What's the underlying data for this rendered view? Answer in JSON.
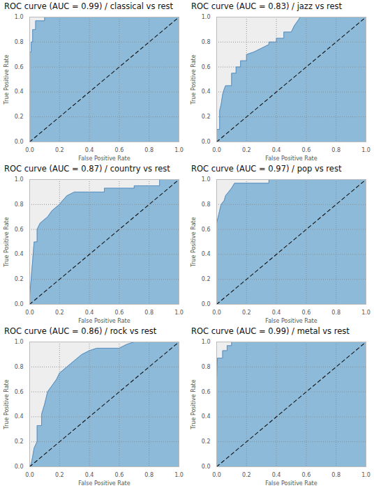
{
  "chart_data": [
    {
      "type": "area",
      "title": "ROC curve (AUC = 0.99) / classical vs rest",
      "x_label": "False Positive Rate",
      "y_label": "True Positive Rate",
      "color": "#8ebad9",
      "x": [
        0,
        0,
        0.01,
        0.01,
        0.02,
        0.02,
        0.04,
        0.04,
        0.1,
        0.1,
        1
      ],
      "values": [
        0,
        0.72,
        0.72,
        0.8,
        0.8,
        0.9,
        0.9,
        0.97,
        0.97,
        1,
        1
      ],
      "xlim": [
        0,
        1
      ],
      "ylim": [
        0,
        1
      ],
      "xticks": [
        {
          "value": 0,
          "label": "0.0"
        },
        0.2,
        0.4,
        0.6,
        0.8,
        {
          "value": 1,
          "label": "1.0"
        }
      ],
      "yticks": [
        {
          "value": 0,
          "label": "0.0"
        },
        0.2,
        0.4,
        0.6,
        0.8,
        {
          "value": 1,
          "label": "1.0"
        }
      ],
      "grid": true
    },
    {
      "type": "area",
      "title": "ROC curve (AUC = 0.83) / jazz vs rest",
      "x_label": "False Positive Rate",
      "y_label": "True Positive Rate",
      "color": "#8ebad9",
      "x": [
        0,
        0,
        0.02,
        0.02,
        0.03,
        0.04,
        0.05,
        0.06,
        0.1,
        0.1,
        0.13,
        0.13,
        0.16,
        0.16,
        0.2,
        0.2,
        0.25,
        0.3,
        0.35,
        0.35,
        0.4,
        0.4,
        0.45,
        0.45,
        0.5,
        0.52,
        0.55,
        0.56,
        1
      ],
      "values": [
        0,
        0.1,
        0.1,
        0.25,
        0.3,
        0.38,
        0.42,
        0.45,
        0.45,
        0.55,
        0.55,
        0.6,
        0.6,
        0.65,
        0.65,
        0.7,
        0.72,
        0.75,
        0.78,
        0.8,
        0.8,
        0.83,
        0.83,
        0.88,
        0.88,
        0.93,
        0.98,
        1,
        1
      ],
      "xlim": [
        0,
        1
      ],
      "ylim": [
        0,
        1
      ],
      "xticks": [
        {
          "value": 0,
          "label": "0.0"
        },
        0.2,
        0.4,
        0.6,
        0.8,
        {
          "value": 1,
          "label": "1.0"
        }
      ],
      "yticks": [
        {
          "value": 0,
          "label": "0.0"
        },
        0.2,
        0.4,
        0.6,
        0.8,
        {
          "value": 1,
          "label": "1.0"
        }
      ],
      "grid": true
    },
    {
      "type": "area",
      "title": "ROC curve (AUC = 0.87) / country vs rest",
      "x_label": "False Positive Rate",
      "y_label": "True Positive Rate",
      "color": "#8ebad9",
      "x": [
        0,
        0,
        0.01,
        0.02,
        0.03,
        0.05,
        0.05,
        0.07,
        0.1,
        0.12,
        0.15,
        0.2,
        0.22,
        0.25,
        0.3,
        0.5,
        0.5,
        0.7,
        0.7,
        0.87,
        0.87,
        1
      ],
      "values": [
        0,
        0.07,
        0.2,
        0.35,
        0.5,
        0.5,
        0.6,
        0.65,
        0.68,
        0.7,
        0.75,
        0.8,
        0.83,
        0.87,
        0.9,
        0.9,
        0.93,
        0.93,
        0.95,
        0.95,
        1,
        1
      ],
      "xlim": [
        0,
        1
      ],
      "ylim": [
        0,
        1
      ],
      "xticks": [
        {
          "value": 0,
          "label": "0.0"
        },
        0.2,
        0.4,
        0.6,
        0.8,
        {
          "value": 1,
          "label": "1.0"
        }
      ],
      "yticks": [
        {
          "value": 0,
          "label": "0.0"
        },
        0.2,
        0.4,
        0.6,
        0.8,
        {
          "value": 1,
          "label": "1.0"
        }
      ],
      "grid": true
    },
    {
      "type": "area",
      "title": "ROC curve (AUC = 0.97) / pop vs rest",
      "x_label": "False Positive Rate",
      "y_label": "True Positive Rate",
      "color": "#8ebad9",
      "x": [
        0,
        0,
        0.01,
        0.02,
        0.03,
        0.05,
        0.06,
        0.08,
        0.1,
        0.12,
        0.35,
        0.35,
        1
      ],
      "values": [
        0,
        0.65,
        0.7,
        0.75,
        0.8,
        0.83,
        0.87,
        0.9,
        0.93,
        0.97,
        0.97,
        1,
        1
      ],
      "xlim": [
        0,
        1
      ],
      "ylim": [
        0,
        1
      ],
      "xticks": [
        {
          "value": 0,
          "label": "0.0"
        },
        0.2,
        0.4,
        0.6,
        0.8,
        {
          "value": 1,
          "label": "1.0"
        }
      ],
      "yticks": [
        {
          "value": 0,
          "label": "0.0"
        },
        0.2,
        0.4,
        0.6,
        0.8,
        {
          "value": 1,
          "label": "1.0"
        }
      ],
      "grid": true
    },
    {
      "type": "area",
      "title": "ROC curve (AUC = 0.86) / rock vs rest",
      "x_label": "False Positive Rate",
      "y_label": "True Positive Rate",
      "color": "#8ebad9",
      "x": [
        0,
        0.01,
        0.02,
        0.03,
        0.05,
        0.05,
        0.08,
        0.08,
        0.1,
        0.12,
        0.15,
        0.18,
        0.2,
        0.25,
        0.3,
        0.35,
        0.4,
        0.45,
        0.6,
        0.65,
        0.7,
        1
      ],
      "values": [
        0,
        0.02,
        0.08,
        0.15,
        0.2,
        0.33,
        0.33,
        0.42,
        0.5,
        0.6,
        0.65,
        0.7,
        0.75,
        0.8,
        0.85,
        0.9,
        0.93,
        0.95,
        0.95,
        0.98,
        1,
        1
      ],
      "xlim": [
        0,
        1
      ],
      "ylim": [
        0,
        1
      ],
      "xticks": [
        {
          "value": 0,
          "label": "0.0"
        },
        0.2,
        0.4,
        0.6,
        0.8,
        {
          "value": 1,
          "label": "1.0"
        }
      ],
      "yticks": [
        {
          "value": 0,
          "label": "0.0"
        },
        0.2,
        0.4,
        0.6,
        0.8,
        {
          "value": 1,
          "label": "1.0"
        }
      ],
      "grid": true
    },
    {
      "type": "area",
      "title": "ROC curve (AUC = 0.99) / metal vs rest",
      "x_label": "False Positive Rate",
      "y_label": "True Positive Rate",
      "color": "#8ebad9",
      "x": [
        0,
        0,
        0.005,
        0.04,
        0.04,
        0.07,
        0.07,
        0.1,
        0.1,
        1
      ],
      "values": [
        0,
        0.7,
        0.87,
        0.87,
        0.93,
        0.93,
        0.97,
        0.97,
        1,
        1
      ],
      "xlim": [
        0,
        1
      ],
      "ylim": [
        0,
        1
      ],
      "xticks": [
        {
          "value": 0,
          "label": "0.0"
        },
        0.2,
        0.4,
        0.6,
        0.8,
        {
          "value": 1,
          "label": "1.0"
        }
      ],
      "yticks": [
        {
          "value": 0,
          "label": "0.0"
        },
        0.2,
        0.4,
        0.6,
        0.8,
        {
          "value": 1,
          "label": "1.0"
        }
      ],
      "grid": true
    }
  ]
}
